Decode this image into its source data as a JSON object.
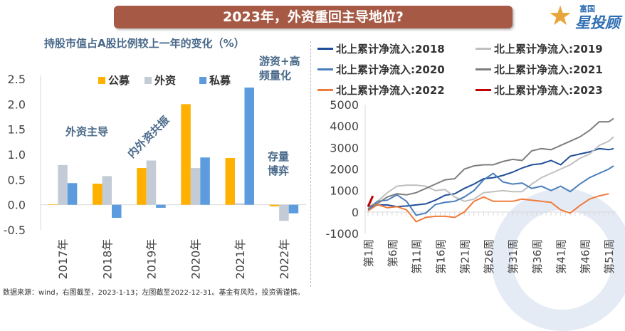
{
  "header": {
    "title": "2023年，外资重回主导地位?",
    "logo_small": "富国",
    "logo_big": "星投顾"
  },
  "footnote": "数据来源：wind，右图截至，2023-1-13；左图截至2022-12-31。基金有风险，投资需谨慎。",
  "watermark": "富国基金",
  "chart_data": [
    {
      "type": "bar",
      "title": "持股市值占A股比例较上一年的变化（%）",
      "categories": [
        "2017年",
        "2018年",
        "2019年",
        "2020年",
        "2021年",
        "2022年"
      ],
      "series": [
        {
          "name": "公募",
          "color": "#ffb000",
          "values": [
            0.01,
            0.42,
            0.73,
            2.0,
            0.93,
            -0.03
          ]
        },
        {
          "name": "外资",
          "color": "#c3ccd6",
          "values": [
            0.79,
            0.57,
            0.88,
            0.73,
            0.03,
            -0.32
          ]
        },
        {
          "name": "私募",
          "color": "#5b9bde",
          "values": [
            0.43,
            -0.26,
            -0.06,
            0.94,
            2.33,
            -0.17
          ]
        }
      ],
      "ylim": [
        -0.5,
        2.5
      ],
      "yticks": [
        "2.5",
        "2.0",
        "1.5",
        "1.0",
        "0.5",
        "0.0",
        "-0.5"
      ],
      "ytick_values": [
        2.5,
        2.0,
        1.5,
        1.0,
        0.5,
        0,
        -0.5
      ],
      "legend": "top",
      "grid": false,
      "annotations": [
        "外资主导",
        "内外资共振",
        "游资+高频量化",
        "存量博弈"
      ]
    },
    {
      "type": "line",
      "x": [
        1,
        3,
        5,
        7,
        9,
        11,
        13,
        15,
        17,
        19,
        21,
        23,
        25,
        27,
        29,
        31,
        33,
        35,
        37,
        39,
        41,
        43,
        45,
        47,
        49,
        51,
        52
      ],
      "xticks": [
        "第1周",
        "第6周",
        "第11周",
        "第16周",
        "第21周",
        "第26周",
        "第31周",
        "第36周",
        "第41周",
        "第46周",
        "第51周"
      ],
      "xtick_values": [
        1,
        6,
        11,
        16,
        21,
        26,
        31,
        36,
        41,
        46,
        51
      ],
      "ylim": [
        -1000,
        5000
      ],
      "yticks": [
        "5000",
        "4000",
        "3000",
        "2000",
        "1000",
        "0",
        "-1000"
      ],
      "ytick_values": [
        5000,
        4000,
        3000,
        2000,
        1000,
        0,
        -1000
      ],
      "legend": "top",
      "grid": false,
      "series": [
        {
          "name": "北上累计净流入:2018",
          "color": "#1f4e99",
          "values": [
            150,
            330,
            330,
            250,
            280,
            330,
            380,
            550,
            780,
            850,
            1100,
            1300,
            1550,
            1600,
            1700,
            1850,
            2050,
            2200,
            2250,
            2400,
            2200,
            2600,
            2700,
            2800,
            2950,
            2900,
            2950
          ]
        },
        {
          "name": "北上累计净流入:2019",
          "color": "#c0c0c0",
          "values": [
            200,
            500,
            900,
            1200,
            1250,
            1250,
            1200,
            1000,
            1050,
            700,
            500,
            600,
            900,
            950,
            1000,
            950,
            950,
            1300,
            1600,
            1800,
            2000,
            2200,
            2500,
            2700,
            3100,
            3300,
            3500
          ]
        },
        {
          "name": "北上累计净流入:2020",
          "color": "#4a7ebb",
          "values": [
            100,
            500,
            550,
            800,
            500,
            -150,
            -50,
            350,
            450,
            500,
            700,
            1000,
            1500,
            1800,
            1400,
            1300,
            1350,
            1100,
            1200,
            1000,
            1200,
            950,
            1300,
            1600,
            1800,
            2000,
            2150
          ]
        },
        {
          "name": "北上累计净流入:2021",
          "color": "#7f7f7f",
          "values": [
            250,
            400,
            700,
            850,
            800,
            900,
            1100,
            1300,
            1500,
            1550,
            2000,
            2150,
            2200,
            2200,
            2350,
            2450,
            2400,
            2850,
            2950,
            2900,
            3100,
            3300,
            3500,
            3800,
            4200,
            4200,
            4350
          ]
        },
        {
          "name": "北上累计净流入:2022",
          "color": "#f07b3a",
          "values": [
            50,
            350,
            200,
            250,
            100,
            -450,
            -250,
            -200,
            -200,
            -250,
            0,
            500,
            700,
            500,
            500,
            500,
            600,
            550,
            500,
            450,
            100,
            -50,
            300,
            600,
            750,
            850,
            null
          ]
        },
        {
          "name": "北上累计净流入:2023",
          "color": "#c00000",
          "x": [
            1,
            2
          ],
          "values": [
            250,
            750
          ]
        }
      ]
    }
  ]
}
